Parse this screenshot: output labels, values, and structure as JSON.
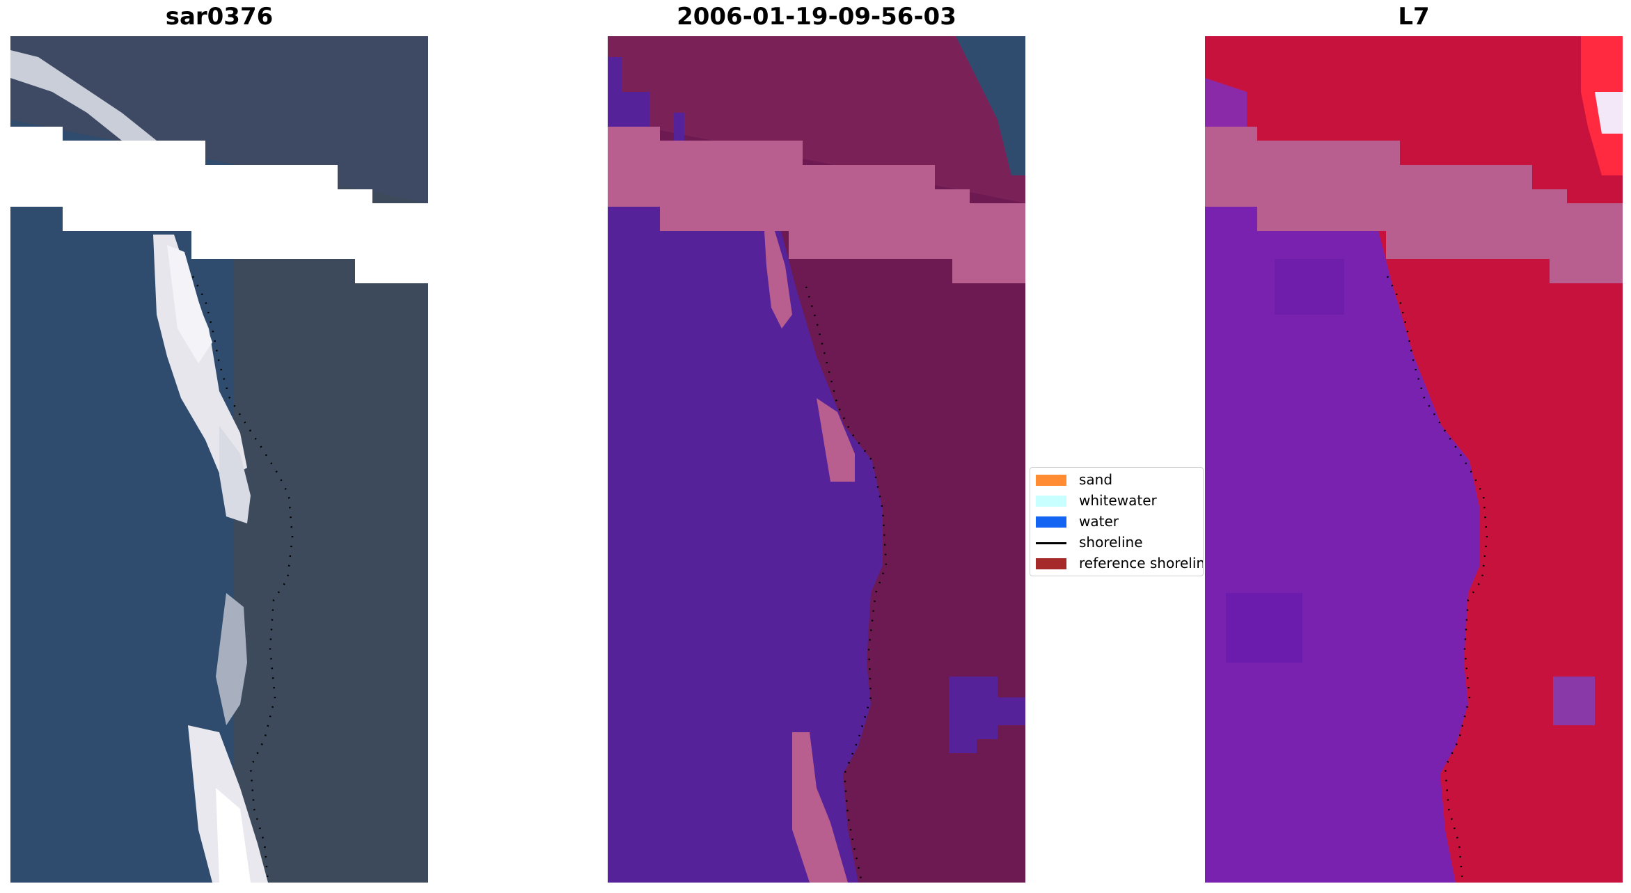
{
  "figure": {
    "titles": [
      "sar0376",
      "2006-01-19-09-56-03",
      "L7"
    ]
  },
  "legend": {
    "items": [
      {
        "label": "sand",
        "color": "#ff8c33",
        "kind": "patch"
      },
      {
        "label": "whitewater",
        "color": "#c8ffff",
        "kind": "patch"
      },
      {
        "label": "water",
        "color": "#1464f4",
        "kind": "patch"
      },
      {
        "label": "shoreline",
        "color": "#000000",
        "kind": "line"
      },
      {
        "label": "reference shoreline",
        "color": "#a62a2a",
        "kind": "patch"
      }
    ]
  },
  "colors": {
    "rgb_water": "#2e4a6e",
    "rgb_land": "#3d4a5a",
    "rgb_beach": "#d8d8dc",
    "class_water": "#55229a",
    "class_land": "#6e1a52",
    "class_sand_overlay": "#b8608f",
    "mndwi_water": "#7a20b0",
    "mndwi_land": "#c8103c",
    "cloud_mask": "#ffffff"
  }
}
